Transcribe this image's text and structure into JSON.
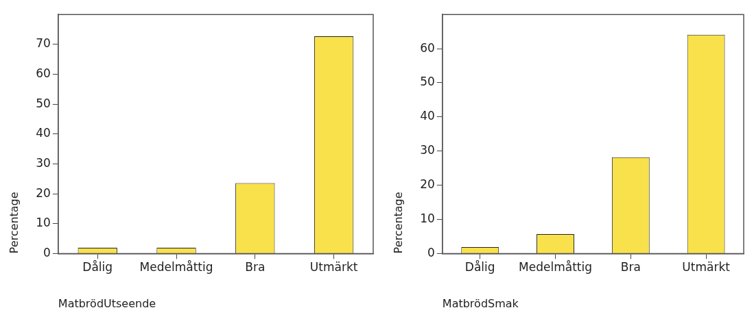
{
  "chart_data": [
    {
      "type": "bar",
      "xlabel": "MatbrödUtseende",
      "ylabel": "Percentage",
      "categories": [
        "Dålig",
        "Medelmåttig",
        "Bra",
        "Utmärkt"
      ],
      "values": [
        1.9,
        1.9,
        23.6,
        72.7
      ],
      "color": "#f9e14b",
      "ylim": [
        0,
        80
      ],
      "yticks": [
        0,
        10,
        20,
        30,
        40,
        50,
        60,
        70
      ],
      "grid": false,
      "legend": false
    },
    {
      "type": "bar",
      "xlabel": "MatbrödSmak",
      "ylabel": "Percentage",
      "categories": [
        "Dålig",
        "Medelmåttig",
        "Bra",
        "Utmärkt"
      ],
      "values": [
        1.9,
        5.7,
        28.2,
        64.1
      ],
      "color": "#f9e14b",
      "ylim": [
        0,
        70
      ],
      "yticks": [
        0,
        10,
        20,
        30,
        40,
        50,
        60
      ],
      "grid": false,
      "legend": false
    }
  ]
}
